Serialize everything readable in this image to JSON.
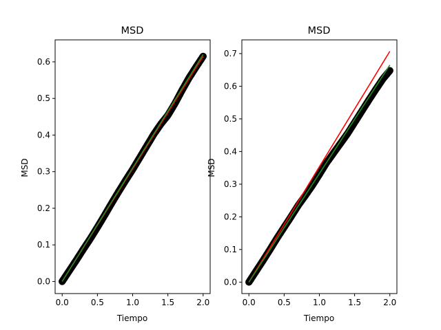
{
  "chart_data": [
    {
      "type": "scatter",
      "title": "MSD",
      "xlabel": "Tiempo",
      "ylabel": "MSD",
      "xlim": [
        -0.1,
        2.1
      ],
      "ylim": [
        -0.033,
        0.66
      ],
      "x_ticks": [
        "0.0",
        "0.5",
        "1.0",
        "1.5",
        "2.0"
      ],
      "y_ticks": [
        "0.0",
        "0.1",
        "0.2",
        "0.3",
        "0.4",
        "0.5",
        "0.6"
      ],
      "grid": false,
      "series": [
        {
          "kind": "scatter",
          "color": "#000000",
          "x": [
            0.0,
            0.1,
            0.2,
            0.3,
            0.4,
            0.5,
            0.6,
            0.7,
            0.8,
            0.9,
            1.0,
            1.1,
            1.2,
            1.3,
            1.4,
            1.5,
            1.6,
            1.7,
            1.8,
            1.9,
            2.0
          ],
          "y": [
            0.0,
            0.029,
            0.058,
            0.088,
            0.117,
            0.148,
            0.18,
            0.213,
            0.245,
            0.276,
            0.306,
            0.338,
            0.37,
            0.402,
            0.43,
            0.454,
            0.486,
            0.522,
            0.556,
            0.586,
            0.615
          ]
        },
        {
          "kind": "line",
          "color": "#ff0000",
          "x": [
            0.0,
            2.0
          ],
          "y": [
            0.0,
            0.615
          ]
        },
        {
          "kind": "line",
          "color": "#228b22",
          "x": [
            0.0,
            2.0
          ],
          "y": [
            0.0,
            0.62
          ]
        }
      ]
    },
    {
      "type": "scatter",
      "title": "MSD",
      "xlabel": "Tiempo",
      "ylabel": "MSD",
      "xlim": [
        -0.1,
        2.1
      ],
      "ylim": [
        -0.035,
        0.742
      ],
      "x_ticks": [
        "0.0",
        "0.5",
        "1.0",
        "1.5",
        "2.0"
      ],
      "y_ticks": [
        "0.0",
        "0.1",
        "0.2",
        "0.3",
        "0.4",
        "0.5",
        "0.6",
        "0.7"
      ],
      "grid": false,
      "series": [
        {
          "kind": "scatter",
          "color": "#000000",
          "x": [
            0.0,
            0.1,
            0.2,
            0.3,
            0.4,
            0.5,
            0.6,
            0.7,
            0.8,
            0.9,
            1.0,
            1.1,
            1.2,
            1.3,
            1.4,
            1.5,
            1.6,
            1.7,
            1.8,
            1.9,
            2.0
          ],
          "y": [
            0.0,
            0.033,
            0.066,
            0.1,
            0.135,
            0.168,
            0.201,
            0.235,
            0.265,
            0.296,
            0.33,
            0.365,
            0.395,
            0.425,
            0.455,
            0.489,
            0.523,
            0.557,
            0.59,
            0.622,
            0.648
          ]
        },
        {
          "kind": "line",
          "color": "#ff0000",
          "x": [
            0.0,
            2.0
          ],
          "y": [
            0.0,
            0.707
          ]
        },
        {
          "kind": "line",
          "color": "#228b22",
          "x": [
            0.0,
            2.0
          ],
          "y": [
            0.0,
            0.665
          ]
        }
      ]
    }
  ]
}
